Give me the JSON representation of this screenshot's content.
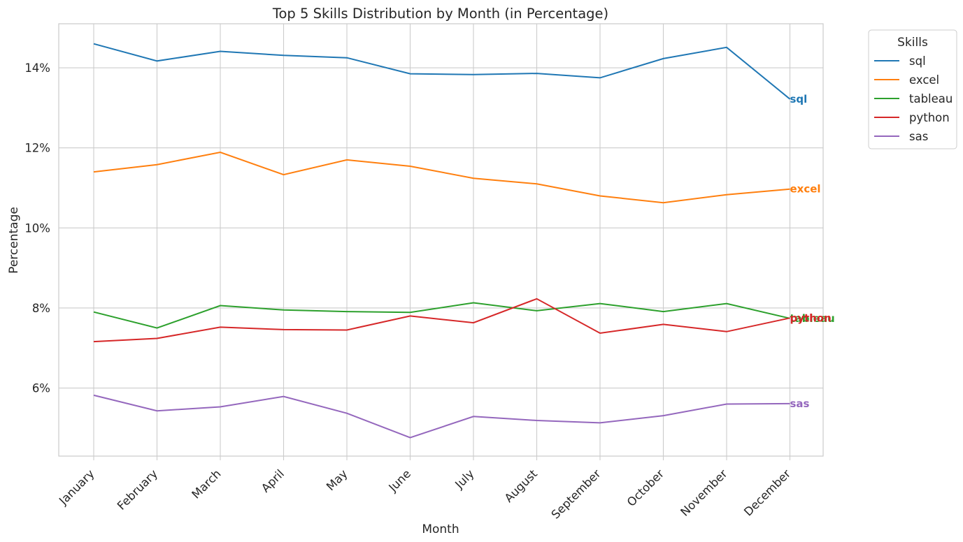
{
  "chart_data": {
    "type": "line",
    "title": "Top 5 Skills Distribution by Month (in Percentage)",
    "xlabel": "Month",
    "ylabel": "Percentage",
    "categories": [
      "January",
      "February",
      "March",
      "April",
      "May",
      "June",
      "July",
      "August",
      "September",
      "October",
      "November",
      "December"
    ],
    "ylim": [
      4.3,
      15.1
    ],
    "yticks": [
      6,
      8,
      10,
      12,
      14
    ],
    "ytick_labels": [
      "6%",
      "8%",
      "10%",
      "12%",
      "14%"
    ],
    "grid": true,
    "legend": {
      "title": "Skills",
      "position": "outside-top-right"
    },
    "series": [
      {
        "name": "sql",
        "color": "#1f77b4",
        "values": [
          14.6,
          14.17,
          14.41,
          14.31,
          14.25,
          13.85,
          13.83,
          13.86,
          13.75,
          14.23,
          14.51,
          13.22
        ]
      },
      {
        "name": "excel",
        "color": "#ff7f0e",
        "values": [
          11.4,
          11.58,
          11.89,
          11.33,
          11.7,
          11.54,
          11.24,
          11.1,
          10.8,
          10.63,
          10.83,
          10.97
        ]
      },
      {
        "name": "tableau",
        "color": "#2ca02c",
        "values": [
          7.9,
          7.5,
          8.06,
          7.95,
          7.91,
          7.89,
          8.13,
          7.93,
          8.11,
          7.91,
          8.11,
          7.74
        ]
      },
      {
        "name": "python",
        "color": "#d62728",
        "values": [
          7.16,
          7.24,
          7.52,
          7.46,
          7.45,
          7.8,
          7.63,
          8.23,
          7.37,
          7.59,
          7.41,
          7.75
        ]
      },
      {
        "name": "sas",
        "color": "#9467bd",
        "values": [
          5.82,
          5.43,
          5.53,
          5.79,
          5.37,
          4.76,
          5.29,
          5.19,
          5.13,
          5.31,
          5.6,
          5.61
        ]
      }
    ],
    "end_labels": [
      "sql",
      "excel",
      "tableau",
      "python",
      "sas"
    ]
  }
}
